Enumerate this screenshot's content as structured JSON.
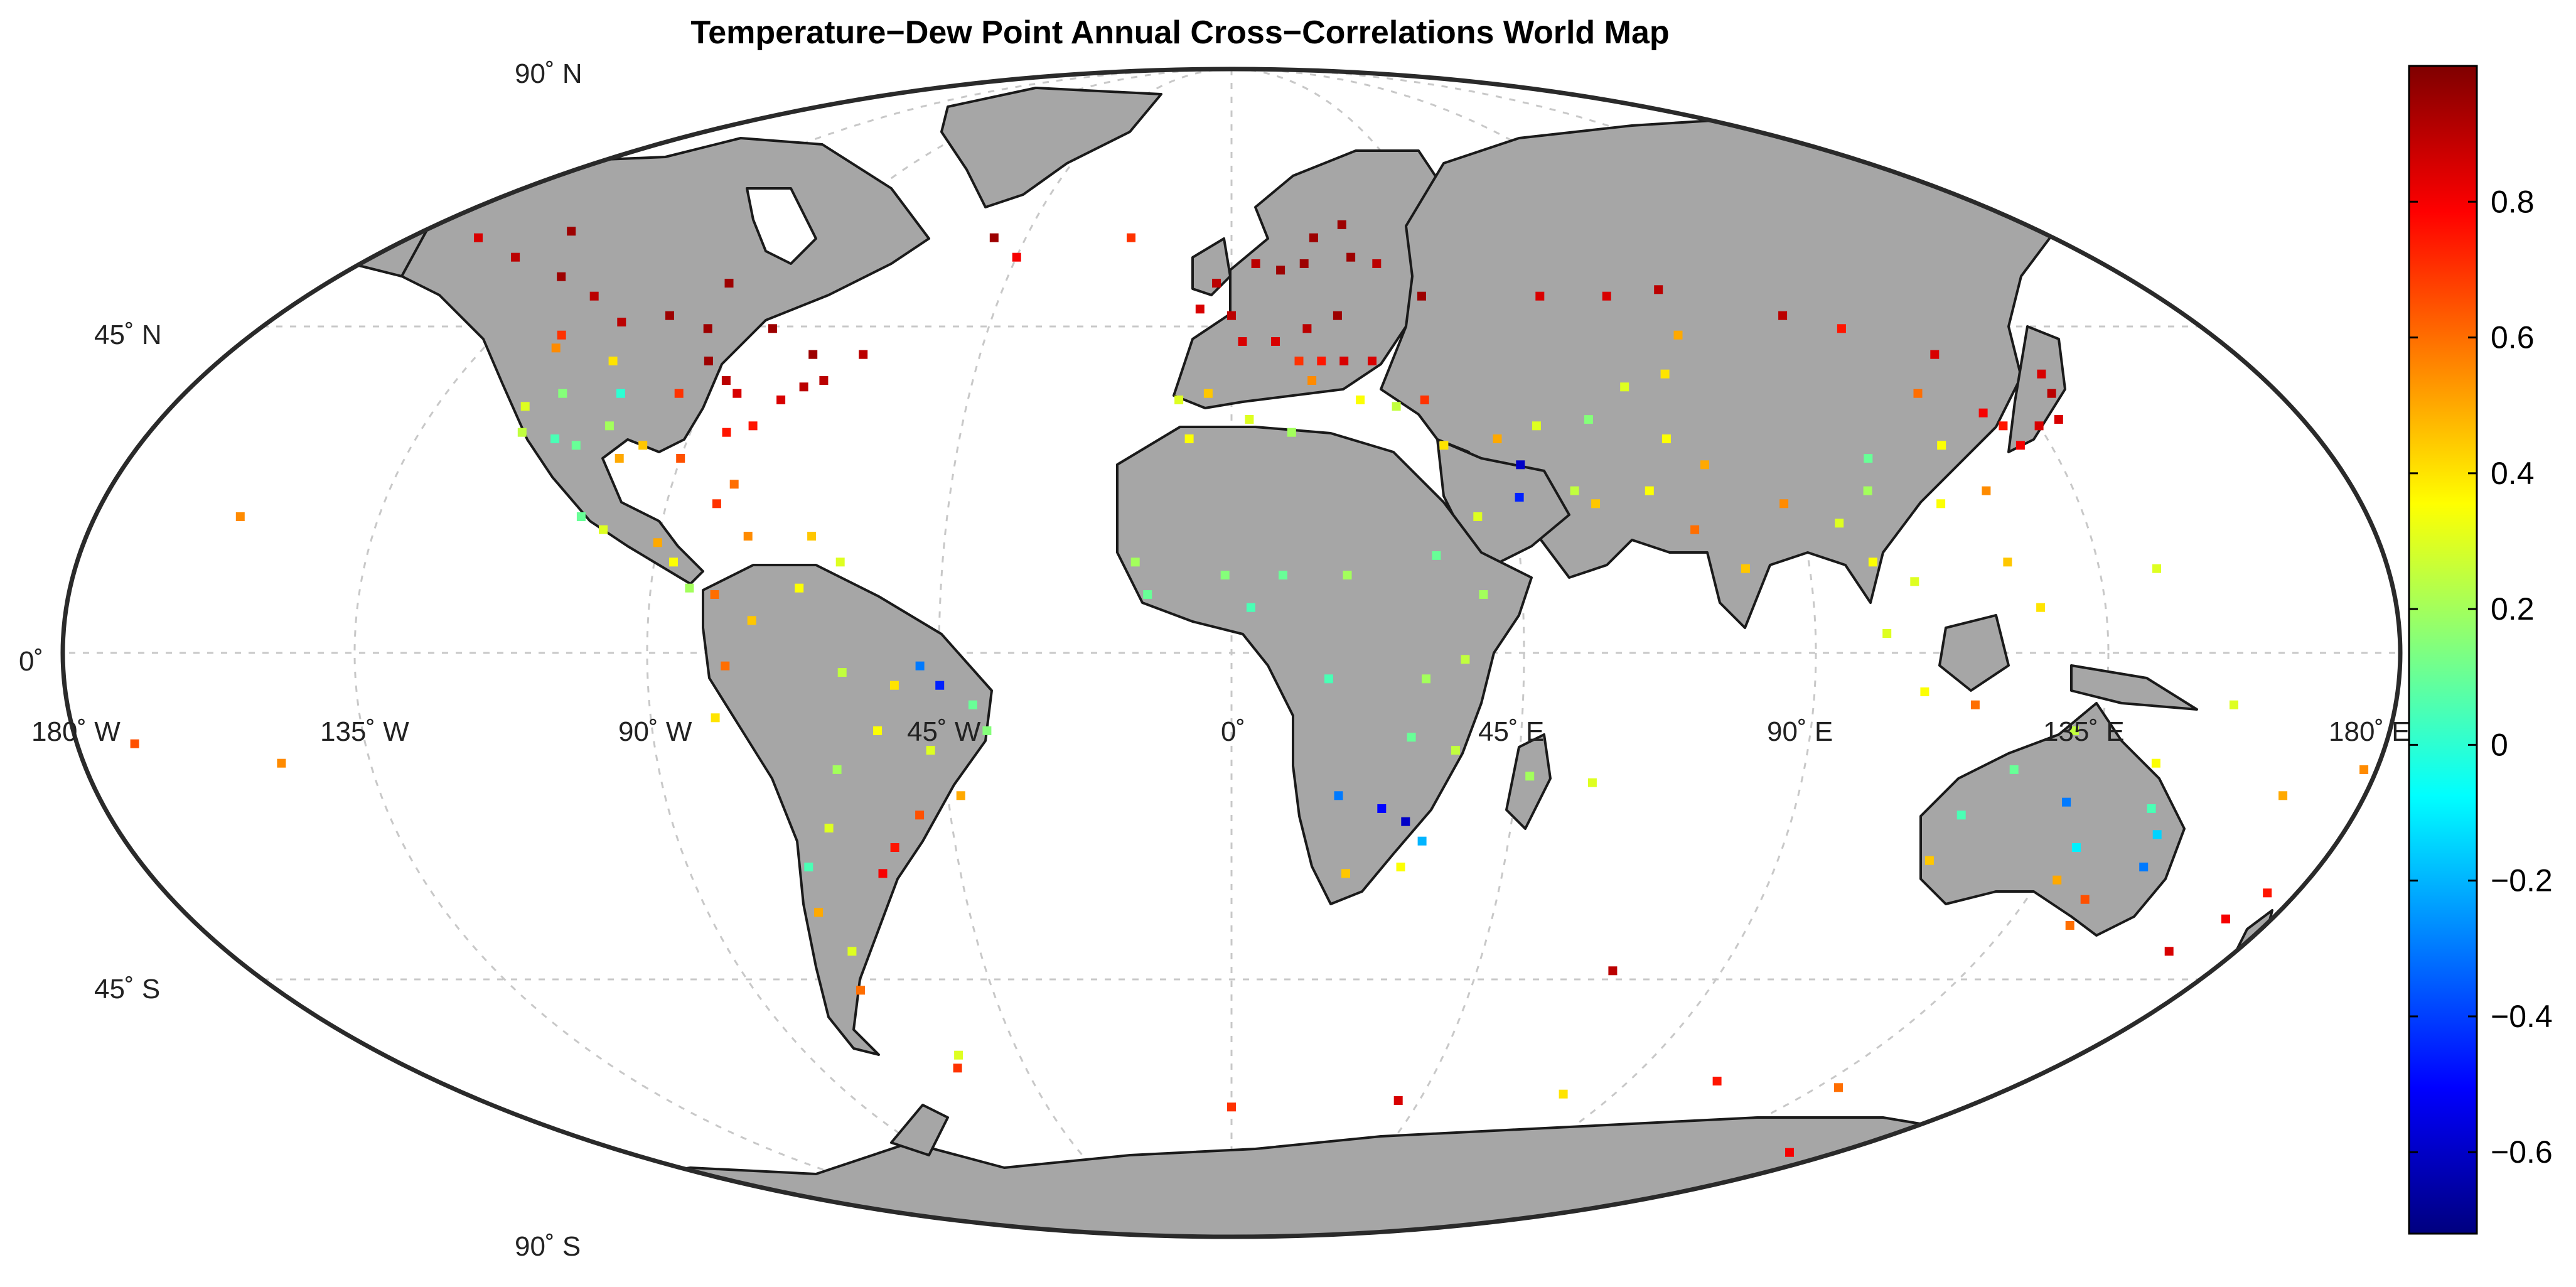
{
  "title": "Temperature−Dew Point Annual Cross−Correlations World Map",
  "graticule": {
    "lat_labels": [
      "90˚ N",
      "45˚ N",
      "0˚",
      "45˚ S",
      "90˚ S"
    ],
    "lon_labels": [
      "180˚ W",
      "135˚ W",
      "90˚ W",
      "45˚ W",
      "0˚",
      "45˚ E",
      "90˚ E",
      "135˚ E",
      "180˚ E"
    ]
  },
  "colorbar": {
    "min": -0.72,
    "max": 1.0,
    "ticks": [
      -0.6,
      -0.4,
      -0.2,
      0,
      0.2,
      0.4,
      0.6,
      0.8
    ],
    "tick_labels": [
      "−0.6",
      "−0.4",
      "−0.2",
      "0",
      "0.2",
      "0.4",
      "0.6",
      "0.8"
    ],
    "colormap": "jet"
  },
  "colors": {
    "land": "#a6a6a6",
    "ocean": "#ffffff",
    "coast": "#1a1a1a",
    "frame": "#2a2a2a",
    "grid": "#c8c8c8"
  },
  "stations": [
    [
      -122,
      47,
      0.55
    ],
    [
      -118,
      34,
      0.25
    ],
    [
      -112,
      33,
      0.05
    ],
    [
      -105,
      40,
      0.0
    ],
    [
      -97,
      32,
      0.45
    ],
    [
      -90,
      30,
      0.65
    ],
    [
      -84,
      34,
      0.75
    ],
    [
      -80,
      26,
      0.6
    ],
    [
      -77,
      39,
      0.85
    ],
    [
      -74,
      41,
      0.9
    ],
    [
      -71,
      42,
      0.9
    ],
    [
      -88,
      42,
      0.9
    ],
    [
      -93,
      45,
      0.95
    ],
    [
      -97,
      50,
      0.95
    ],
    [
      -106,
      52,
      0.95
    ],
    [
      -114,
      51,
      0.9
    ],
    [
      -123,
      49,
      0.7
    ],
    [
      -135,
      58,
      0.95
    ],
    [
      -150,
      61,
      0.9
    ],
    [
      -165,
      64,
      0.85
    ],
    [
      -147,
      65,
      0.95
    ],
    [
      -124,
      55,
      0.9
    ],
    [
      -100,
      57,
      0.95
    ],
    [
      -85,
      50,
      0.95
    ],
    [
      -75,
      46,
      0.95
    ],
    [
      -66,
      46,
      0.9
    ],
    [
      -110,
      45,
      0.4
    ],
    [
      -104,
      35,
      0.2
    ],
    [
      -100,
      30,
      0.5
    ],
    [
      -95,
      40,
      0.7
    ],
    [
      -85,
      40,
      0.85
    ],
    [
      -80,
      35,
      0.75
    ],
    [
      -120,
      38,
      0.3
    ],
    [
      -115,
      40,
      0.15
    ],
    [
      -108,
      32,
      0.1
    ],
    [
      -99,
      19,
      0.3
    ],
    [
      -103,
      21,
      0.1
    ],
    [
      -90,
      17,
      0.5
    ],
    [
      -87,
      14,
      0.35
    ],
    [
      -84,
      10,
      0.2
    ],
    [
      -80,
      9,
      0.6
    ],
    [
      -76,
      18,
      0.55
    ],
    [
      -82,
      23,
      0.7
    ],
    [
      -66,
      18,
      0.45
    ],
    [
      -61,
      14,
      0.3
    ],
    [
      -74,
      5,
      0.45
    ],
    [
      -67,
      10,
      0.35
    ],
    [
      -78,
      -2,
      0.6
    ],
    [
      -80,
      -10,
      0.4
    ],
    [
      -60,
      -3,
      0.25
    ],
    [
      -55,
      -12,
      0.35
    ],
    [
      -47,
      -15,
      0.3
    ],
    [
      -43,
      -22,
      0.5
    ],
    [
      -40,
      -8,
      0.1
    ],
    [
      -38,
      -12,
      0.15
    ],
    [
      -50,
      -25,
      0.65
    ],
    [
      -55,
      -30,
      0.75
    ],
    [
      -58,
      -34,
      0.8
    ],
    [
      -65,
      -27,
      0.3
    ],
    [
      -70,
      -33,
      0.05
    ],
    [
      -71,
      -40,
      0.5
    ],
    [
      -68,
      -46,
      0.3
    ],
    [
      -70,
      -52,
      0.6
    ],
    [
      -62,
      -18,
      0.2
    ],
    [
      -52,
      -5,
      0.4
    ],
    [
      -45,
      -5,
      -0.45
    ],
    [
      -48,
      -2,
      -0.3
    ],
    [
      -52,
      64,
      0.95
    ],
    [
      -45,
      61,
      0.8
    ],
    [
      -22,
      64,
      0.7
    ],
    [
      -9,
      39,
      0.3
    ],
    [
      -4,
      40,
      0.45
    ],
    [
      2,
      48,
      0.85
    ],
    [
      0,
      52,
      0.9
    ],
    [
      -6,
      53,
      0.85
    ],
    [
      -3,
      57,
      0.9
    ],
    [
      5,
      60,
      0.9
    ],
    [
      10,
      59,
      0.95
    ],
    [
      15,
      60,
      0.95
    ],
    [
      18,
      64,
      0.95
    ],
    [
      25,
      61,
      0.95
    ],
    [
      25,
      66,
      0.95
    ],
    [
      30,
      60,
      0.9
    ],
    [
      37,
      55,
      0.95
    ],
    [
      20,
      52,
      0.95
    ],
    [
      14,
      50,
      0.9
    ],
    [
      8,
      48,
      0.85
    ],
    [
      12,
      45,
      0.7
    ],
    [
      16,
      45,
      0.75
    ],
    [
      20,
      45,
      0.85
    ],
    [
      25,
      45,
      0.85
    ],
    [
      14,
      42,
      0.55
    ],
    [
      22,
      39,
      0.35
    ],
    [
      28,
      38,
      0.25
    ],
    [
      33,
      39,
      0.7
    ],
    [
      35,
      32,
      0.4
    ],
    [
      44,
      33,
      0.5
    ],
    [
      51,
      35,
      0.3
    ],
    [
      47,
      29,
      -0.6
    ],
    [
      46,
      24,
      -0.45
    ],
    [
      39,
      21,
      0.3
    ],
    [
      55,
      25,
      0.25
    ],
    [
      58,
      23,
      0.45
    ],
    [
      67,
      25,
      0.35
    ],
    [
      73,
      19,
      0.6
    ],
    [
      77,
      29,
      0.5
    ],
    [
      80,
      13,
      0.45
    ],
    [
      88,
      23,
      0.55
    ],
    [
      72,
      33,
      0.35
    ],
    [
      60,
      36,
      0.15
    ],
    [
      68,
      41,
      0.3
    ],
    [
      76,
      43,
      0.4
    ],
    [
      82,
      49,
      0.5
    ],
    [
      60,
      55,
      0.85
    ],
    [
      73,
      55,
      0.85
    ],
    [
      84,
      56,
      0.9
    ],
    [
      104,
      52,
      0.9
    ],
    [
      113,
      50,
      0.75
    ],
    [
      126,
      46,
      0.85
    ],
    [
      118,
      40,
      0.6
    ],
    [
      117,
      32,
      0.35
    ],
    [
      113,
      23,
      0.35
    ],
    [
      104,
      30,
      0.1
    ],
    [
      102,
      25,
      0.2
    ],
    [
      96,
      20,
      0.3
    ],
    [
      100,
      14,
      0.35
    ],
    [
      106,
      11,
      0.3
    ],
    [
      101,
      3,
      0.3
    ],
    [
      107,
      -6,
      0.35
    ],
    [
      115,
      -8,
      0.6
    ],
    [
      121,
      14,
      0.45
    ],
    [
      125,
      7,
      0.4
    ],
    [
      121,
      25,
      0.55
    ],
    [
      127,
      37,
      0.8
    ],
    [
      129,
      35,
      0.75
    ],
    [
      135,
      35,
      0.85
    ],
    [
      139,
      36,
      0.85
    ],
    [
      141,
      40,
      0.9
    ],
    [
      142,
      43,
      0.85
    ],
    [
      130,
      32,
      0.8
    ],
    [
      -7,
      33,
      0.35
    ],
    [
      3,
      36,
      0.3
    ],
    [
      10,
      34,
      0.2
    ],
    [
      -15,
      14,
      0.2
    ],
    [
      -1,
      12,
      0.15
    ],
    [
      8,
      12,
      0.1
    ],
    [
      3,
      7,
      0.05
    ],
    [
      -13,
      9,
      0.1
    ],
    [
      18,
      12,
      0.2
    ],
    [
      32,
      15,
      0.1
    ],
    [
      39,
      9,
      0.2
    ],
    [
      36,
      -1,
      0.25
    ],
    [
      30,
      -4,
      0.2
    ],
    [
      15,
      -4,
      0.05
    ],
    [
      28,
      -13,
      0.1
    ],
    [
      35,
      -15,
      0.25
    ],
    [
      17,
      -22,
      -0.3
    ],
    [
      24,
      -24,
      -0.5
    ],
    [
      28,
      -26,
      -0.6
    ],
    [
      31,
      -29,
      -0.2
    ],
    [
      28,
      -33,
      0.35
    ],
    [
      19,
      -34,
      0.45
    ],
    [
      47,
      -19,
      0.2
    ],
    [
      57,
      -20,
      0.3
    ],
    [
      115,
      -32,
      0.45
    ],
    [
      117,
      -25,
      0.05
    ],
    [
      123,
      -18,
      0.1
    ],
    [
      131,
      -12,
      0.25
    ],
    [
      133,
      -23,
      -0.3
    ],
    [
      138,
      -30,
      -0.1
    ],
    [
      145,
      -17,
      0.35
    ],
    [
      147,
      -24,
      0.05
    ],
    [
      150,
      -28,
      -0.15
    ],
    [
      151,
      -33,
      -0.3
    ],
    [
      145,
      -38,
      0.65
    ],
    [
      138,
      -35,
      0.5
    ],
    [
      146,
      -42,
      0.6
    ],
    [
      172,
      -41,
      0.8
    ],
    [
      175,
      -37,
      0.75
    ],
    [
      168,
      -46,
      0.85
    ],
    [
      -157,
      21,
      0.55
    ],
    [
      -149,
      -17,
      0.55
    ],
    [
      -171,
      -14,
      0.65
    ],
    [
      178,
      -18,
      0.55
    ],
    [
      167,
      -22,
      0.5
    ],
    [
      155,
      -8,
      0.3
    ],
    [
      144,
      13,
      0.3
    ],
    [
      70,
      -49,
      0.9
    ],
    [
      -58,
      -62,
      0.3
    ],
    [
      -60,
      -64,
      0.7
    ],
    [
      0,
      -70,
      0.7
    ],
    [
      40,
      -69,
      0.85
    ],
    [
      78,
      -68,
      0.4
    ],
    [
      110,
      -66,
      0.75
    ],
    [
      140,
      -67,
      0.6
    ],
    [
      166,
      -77,
      0.8
    ]
  ]
}
